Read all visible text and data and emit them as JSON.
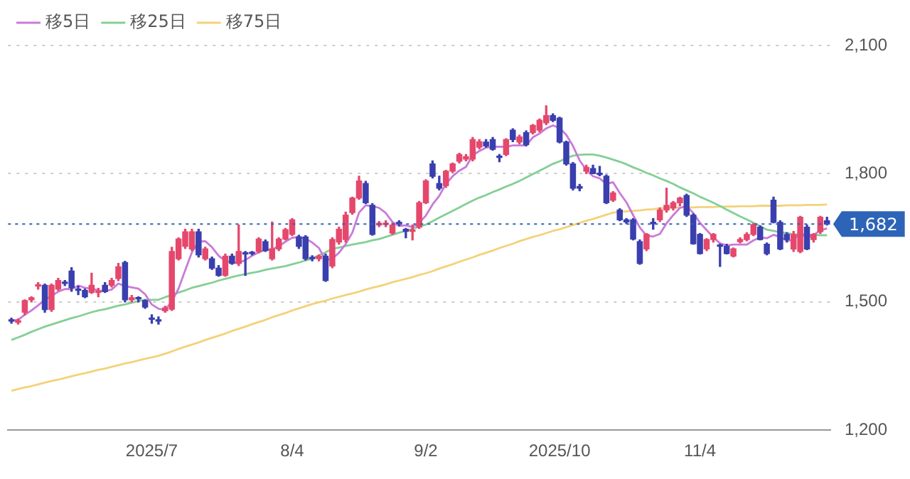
{
  "chart_data": {
    "type": "candlestick",
    "categories": [
      null,
      null,
      null,
      null,
      null,
      null,
      null,
      null,
      null,
      null,
      null,
      null,
      null,
      null,
      null,
      null,
      null,
      null,
      null,
      null,
      null,
      "2025/7",
      null,
      null,
      null,
      null,
      null,
      null,
      null,
      null,
      null,
      null,
      null,
      null,
      null,
      null,
      null,
      null,
      null,
      null,
      null,
      null,
      "8/4",
      null,
      null,
      null,
      null,
      null,
      null,
      null,
      null,
      null,
      null,
      null,
      null,
      null,
      null,
      null,
      null,
      null,
      null,
      null,
      "9/2",
      null,
      null,
      null,
      null,
      null,
      null,
      null,
      null,
      null,
      null,
      null,
      null,
      null,
      null,
      null,
      null,
      null,
      null,
      null,
      "2025/10",
      null,
      null,
      null,
      null,
      null,
      null,
      null,
      null,
      null,
      null,
      null,
      null,
      null,
      null,
      null,
      null,
      null,
      null,
      null,
      null,
      "11/4",
      null,
      null,
      null,
      null,
      null,
      null,
      null,
      null,
      null,
      null,
      null,
      null,
      null,
      null,
      null,
      null,
      null,
      null,
      null
    ],
    "ohlc": [
      [
        1457,
        1462,
        1450,
        1455
      ],
      [
        1452,
        1460,
        1448,
        1456
      ],
      [
        1476,
        1505,
        1470,
        1503
      ],
      [
        1505,
        1512,
        1500,
        1510
      ],
      [
        1537,
        1545,
        1530,
        1538
      ],
      [
        1539,
        1542,
        1476,
        1482
      ],
      [
        1482,
        1542,
        1478,
        1539
      ],
      [
        1530,
        1555,
        1527,
        1550
      ],
      [
        1545,
        1550,
        1538,
        1543
      ],
      [
        1572,
        1580,
        1525,
        1533
      ],
      [
        1528,
        1537,
        1517,
        1527
      ],
      [
        1527,
        1530,
        1510,
        1512
      ],
      [
        1522,
        1567,
        1520,
        1539
      ],
      [
        1522,
        1532,
        1512,
        1522
      ],
      [
        1539,
        1545,
        1522,
        1524
      ],
      [
        1539,
        1555,
        1535,
        1550
      ],
      [
        1555,
        1590,
        1550,
        1582
      ],
      [
        1592,
        1595,
        1500,
        1505
      ],
      [
        1505,
        1515,
        1500,
        1510
      ],
      [
        1508,
        1512,
        1500,
        1507
      ],
      [
        1503,
        1505,
        1485,
        1488
      ],
      [
        1460,
        1470,
        1450,
        1459
      ],
      [
        1456,
        1465,
        1448,
        1455
      ],
      [
        1479,
        1490,
        1476,
        1486
      ],
      [
        1483,
        1628,
        1480,
        1618
      ],
      [
        1601,
        1650,
        1598,
        1647
      ],
      [
        1630,
        1670,
        1625,
        1664
      ],
      [
        1624,
        1670,
        1620,
        1664
      ],
      [
        1664,
        1670,
        1605,
        1610
      ],
      [
        1601,
        1628,
        1598,
        1624
      ],
      [
        1601,
        1605,
        1576,
        1579
      ],
      [
        1579,
        1585,
        1560,
        1562
      ],
      [
        1562,
        1612,
        1560,
        1607
      ],
      [
        1607,
        1612,
        1588,
        1590
      ],
      [
        1590,
        1680,
        1585,
        1618
      ],
      [
        1615,
        1618,
        1562,
        1612
      ],
      [
        1615,
        1618,
        1610,
        1613
      ],
      [
        1618,
        1650,
        1615,
        1647
      ],
      [
        1641,
        1645,
        1618,
        1620
      ],
      [
        1601,
        1687,
        1598,
        1624
      ],
      [
        1624,
        1650,
        1620,
        1647
      ],
      [
        1647,
        1672,
        1645,
        1669
      ],
      [
        1658,
        1695,
        1655,
        1692
      ],
      [
        1652,
        1656,
        1625,
        1630
      ],
      [
        1652,
        1655,
        1598,
        1601
      ],
      [
        1603,
        1608,
        1596,
        1601
      ],
      [
        1601,
        1610,
        1596,
        1607
      ],
      [
        1607,
        1612,
        1548,
        1550
      ],
      [
        1584,
        1650,
        1580,
        1646
      ],
      [
        1640,
        1675,
        1635,
        1670
      ],
      [
        1646,
        1710,
        1640,
        1703
      ],
      [
        1709,
        1745,
        1705,
        1743
      ],
      [
        1743,
        1794,
        1740,
        1783
      ],
      [
        1777,
        1782,
        1730,
        1732
      ],
      [
        1726,
        1730,
        1656,
        1658
      ],
      [
        1680,
        1688,
        1676,
        1684
      ],
      [
        1681,
        1690,
        1676,
        1683
      ],
      [
        1661,
        1684,
        1658,
        1680
      ],
      [
        1684,
        1690,
        1678,
        1683
      ],
      [
        1670,
        1672,
        1650,
        1665
      ],
      [
        1665,
        1680,
        1645,
        1666
      ],
      [
        1675,
        1735,
        1672,
        1732
      ],
      [
        1732,
        1786,
        1730,
        1783
      ],
      [
        1823,
        1830,
        1790,
        1794
      ],
      [
        1777,
        1794,
        1762,
        1766
      ],
      [
        1772,
        1808,
        1768,
        1806
      ],
      [
        1806,
        1825,
        1803,
        1823
      ],
      [
        1829,
        1848,
        1825,
        1845
      ],
      [
        1834,
        1845,
        1830,
        1840
      ],
      [
        1834,
        1885,
        1830,
        1880
      ],
      [
        1862,
        1880,
        1858,
        1875
      ],
      [
        1874,
        1880,
        1862,
        1865
      ],
      [
        1880,
        1885,
        1855,
        1857
      ],
      [
        1840,
        1845,
        1828,
        1838
      ],
      [
        1845,
        1882,
        1842,
        1880
      ],
      [
        1902,
        1905,
        1875,
        1880
      ],
      [
        1874,
        1890,
        1870,
        1886
      ],
      [
        1896,
        1900,
        1865,
        1868
      ],
      [
        1896,
        1915,
        1893,
        1913
      ],
      [
        1902,
        1928,
        1898,
        1925
      ],
      [
        1919,
        1959,
        1915,
        1936
      ],
      [
        1936,
        1940,
        1922,
        1925
      ],
      [
        1930,
        1932,
        1872,
        1874
      ],
      [
        1874,
        1876,
        1820,
        1823
      ],
      [
        1823,
        1826,
        1762,
        1766
      ],
      [
        1770,
        1775,
        1760,
        1766
      ],
      [
        1806,
        1820,
        1800,
        1815
      ],
      [
        1812,
        1820,
        1800,
        1800
      ],
      [
        1800,
        1817,
        1795,
        1798
      ],
      [
        1794,
        1797,
        1730,
        1732
      ],
      [
        1738,
        1758,
        1735,
        1755
      ],
      [
        1715,
        1718,
        1690,
        1692
      ],
      [
        1692,
        1695,
        1683,
        1687
      ],
      [
        1692,
        1695,
        1645,
        1647
      ],
      [
        1641,
        1645,
        1588,
        1590
      ],
      [
        1624,
        1660,
        1620,
        1658
      ],
      [
        1683,
        1695,
        1670,
        1683
      ],
      [
        1692,
        1720,
        1688,
        1715
      ],
      [
        1715,
        1766,
        1710,
        1726
      ],
      [
        1720,
        1735,
        1715,
        1732
      ],
      [
        1732,
        1745,
        1725,
        1743
      ],
      [
        1749,
        1752,
        1700,
        1703
      ],
      [
        1703,
        1706,
        1635,
        1636
      ],
      [
        1658,
        1660,
        1612,
        1613
      ],
      [
        1624,
        1648,
        1620,
        1646
      ],
      [
        1646,
        1660,
        1640,
        1658
      ],
      [
        1630,
        1635,
        1583,
        1630
      ],
      [
        1630,
        1635,
        1612,
        1613
      ],
      [
        1607,
        1626,
        1605,
        1624
      ],
      [
        1641,
        1650,
        1638,
        1646
      ],
      [
        1646,
        1662,
        1643,
        1658
      ],
      [
        1658,
        1683,
        1655,
        1681
      ],
      [
        1675,
        1678,
        1645,
        1646
      ],
      [
        1635,
        1638,
        1610,
        1613
      ],
      [
        1738,
        1745,
        1685,
        1686
      ],
      [
        1686,
        1690,
        1622,
        1624
      ],
      [
        1658,
        1662,
        1640,
        1646
      ],
      [
        1624,
        1665,
        1618,
        1658
      ],
      [
        1618,
        1700,
        1615,
        1698
      ],
      [
        1675,
        1680,
        1622,
        1624
      ],
      [
        1646,
        1660,
        1640,
        1658
      ],
      [
        1664,
        1700,
        1660,
        1698
      ],
      [
        1690,
        1698,
        1680,
        1682
      ]
    ],
    "colors": [
      "#3a3fae",
      "#e5486c",
      "#e5486c",
      "#e5486c",
      "#e5486c",
      "#3a3fae",
      "#e5486c",
      "#e5486c",
      "#3a3fae",
      "#3a3fae",
      "#3a3fae",
      "#3a3fae",
      "#e5486c",
      "#e5486c",
      "#3a3fae",
      "#e5486c",
      "#e5486c",
      "#3a3fae",
      "#e5486c",
      "#3a3fae",
      "#3a3fae",
      "#3a3fae",
      "#3a3fae",
      "#e5486c",
      "#e5486c",
      "#e5486c",
      "#e5486c",
      "#e5486c",
      "#3a3fae",
      "#e5486c",
      "#3a3fae",
      "#3a3fae",
      "#e5486c",
      "#3a3fae",
      "#e5486c",
      "#3a3fae",
      "#3a3fae",
      "#e5486c",
      "#3a3fae",
      "#e5486c",
      "#e5486c",
      "#e5486c",
      "#e5486c",
      "#3a3fae",
      "#3a3fae",
      "#3a3fae",
      "#e5486c",
      "#3a3fae",
      "#e5486c",
      "#e5486c",
      "#e5486c",
      "#e5486c",
      "#e5486c",
      "#3a3fae",
      "#3a3fae",
      "#e5486c",
      "#e5486c",
      "#e5486c",
      "#3a3fae",
      "#3a3fae",
      "#e5486c",
      "#e5486c",
      "#e5486c",
      "#3a3fae",
      "#3a3fae",
      "#e5486c",
      "#e5486c",
      "#e5486c",
      "#e5486c",
      "#e5486c",
      "#e5486c",
      "#3a3fae",
      "#3a3fae",
      "#3a3fae",
      "#e5486c",
      "#3a3fae",
      "#e5486c",
      "#3a3fae",
      "#e5486c",
      "#e5486c",
      "#e5486c",
      "#3a3fae",
      "#3a3fae",
      "#3a3fae",
      "#3a3fae",
      "#3a3fae",
      "#e5486c",
      "#3a3fae",
      "#3a3fae",
      "#3a3fae",
      "#e5486c",
      "#3a3fae",
      "#3a3fae",
      "#3a3fae",
      "#3a3fae",
      "#e5486c",
      "#3a3fae",
      "#e5486c",
      "#e5486c",
      "#e5486c",
      "#e5486c",
      "#3a3fae",
      "#3a3fae",
      "#3a3fae",
      "#e5486c",
      "#e5486c",
      "#3a3fae",
      "#3a3fae",
      "#e5486c",
      "#e5486c",
      "#e5486c",
      "#e5486c",
      "#3a3fae",
      "#3a3fae",
      "#3a3fae",
      "#3a3fae",
      "#3a3fae",
      "#e5486c",
      "#e5486c",
      "#3a3fae",
      "#e5486c",
      "#e5486c",
      "#3a3fae"
    ],
    "series": [
      {
        "name": "移5日",
        "type": "line",
        "color": "#c97ad8",
        "values": [
          1456,
          1458,
          1470,
          1480,
          1492,
          1505,
          1514,
          1524,
          1530,
          1530,
          1538,
          1533,
          1531,
          1527,
          1525,
          1529,
          1543,
          1537,
          1534,
          1531,
          1518,
          1494,
          1484,
          1481,
          1501,
          1531,
          1574,
          1616,
          1641,
          1642,
          1628,
          1608,
          1596,
          1592,
          1591,
          1598,
          1608,
          1616,
          1622,
          1623,
          1630,
          1641,
          1650,
          1652,
          1648,
          1639,
          1626,
          1598,
          1601,
          1615,
          1635,
          1662,
          1709,
          1726,
          1724,
          1720,
          1708,
          1687,
          1678,
          1679,
          1675,
          1685,
          1702,
          1728,
          1748,
          1776,
          1794,
          1807,
          1816,
          1843,
          1853,
          1861,
          1863,
          1863,
          1863,
          1866,
          1866,
          1866,
          1885,
          1894,
          1906,
          1913,
          1907,
          1891,
          1865,
          1831,
          1809,
          1794,
          1789,
          1776,
          1780,
          1755,
          1733,
          1703,
          1674,
          1655,
          1653,
          1659,
          1684,
          1703,
          1720,
          1724,
          1708,
          1685,
          1668,
          1651,
          1637,
          1632,
          1634,
          1634,
          1634,
          1644,
          1651,
          1649,
          1657,
          1652,
          1643,
          1645,
          1662,
          1650,
          1657,
          1667,
          1672
        ]
      },
      {
        "name": "移25日",
        "type": "line",
        "color": "#85cf95",
        "values": [
          1411,
          1417,
          1423,
          1430,
          1436,
          1442,
          1447,
          1452,
          1457,
          1462,
          1466,
          1471,
          1476,
          1480,
          1483,
          1487,
          1491,
          1494,
          1498,
          1502,
          1505,
          1505,
          1505,
          1511,
          1516,
          1522,
          1527,
          1533,
          1537,
          1541,
          1545,
          1550,
          1554,
          1558,
          1562,
          1565,
          1568,
          1571,
          1575,
          1578,
          1581,
          1584,
          1588,
          1592,
          1597,
          1601,
          1609,
          1616,
          1624,
          1627,
          1631,
          1634,
          1637,
          1640,
          1644,
          1647,
          1652,
          1657,
          1662,
          1666,
          1671,
          1676,
          1681,
          1689,
          1697,
          1705,
          1713,
          1721,
          1729,
          1737,
          1744,
          1750,
          1757,
          1763,
          1770,
          1776,
          1783,
          1791,
          1799,
          1807,
          1815,
          1823,
          1829,
          1836,
          1842,
          1844,
          1845,
          1845,
          1842,
          1838,
          1833,
          1828,
          1822,
          1815,
          1809,
          1802,
          1796,
          1789,
          1783,
          1776,
          1768,
          1761,
          1754,
          1746,
          1739,
          1732,
          1724,
          1716,
          1708,
          1700,
          1693,
          1685,
          1677,
          1669,
          1666,
          1663,
          1661,
          1658,
          1658,
          1657,
          1657,
          1656,
          1656
        ]
      },
      {
        "name": "移75日",
        "type": "line",
        "color": "#f4d27a",
        "values": [
          1292,
          1296,
          1300,
          1303,
          1307,
          1311,
          1315,
          1318,
          1322,
          1326,
          1330,
          1333,
          1337,
          1341,
          1344,
          1348,
          1352,
          1356,
          1359,
          1363,
          1367,
          1370,
          1374,
          1379,
          1384,
          1390,
          1395,
          1400,
          1405,
          1411,
          1416,
          1421,
          1426,
          1432,
          1437,
          1442,
          1448,
          1453,
          1458,
          1464,
          1469,
          1474,
          1480,
          1485,
          1490,
          1495,
          1499,
          1503,
          1508,
          1512,
          1516,
          1520,
          1524,
          1529,
          1533,
          1537,
          1541,
          1546,
          1550,
          1554,
          1558,
          1563,
          1567,
          1572,
          1578,
          1583,
          1588,
          1594,
          1599,
          1604,
          1610,
          1615,
          1620,
          1626,
          1631,
          1636,
          1642,
          1647,
          1652,
          1656,
          1661,
          1666,
          1670,
          1675,
          1680,
          1685,
          1690,
          1694,
          1699,
          1704,
          1709,
          1710,
          1712,
          1713,
          1714,
          1716,
          1717,
          1719,
          1720,
          1720,
          1721,
          1721,
          1721,
          1722,
          1722,
          1722,
          1723,
          1723,
          1723,
          1724,
          1724,
          1724,
          1725,
          1725,
          1725,
          1725,
          1726,
          1726,
          1726,
          1727,
          1727,
          1727,
          1728
        ]
      }
    ],
    "ylim": [
      1200,
      2100
    ],
    "yticks": [
      {
        "value": 1200,
        "label": "1,200"
      },
      {
        "value": 1500,
        "label": "1,500"
      },
      {
        "value": 1800,
        "label": "1,800"
      },
      {
        "value": 2100,
        "label": "2,100"
      }
    ],
    "grid": "y",
    "legend": "top left",
    "marker": "none",
    "ref_lines": [
      {
        "axis": "y",
        "value": 1682,
        "label": "1,682",
        "color": "#2d64b8",
        "line_style": "dotted"
      }
    ]
  }
}
